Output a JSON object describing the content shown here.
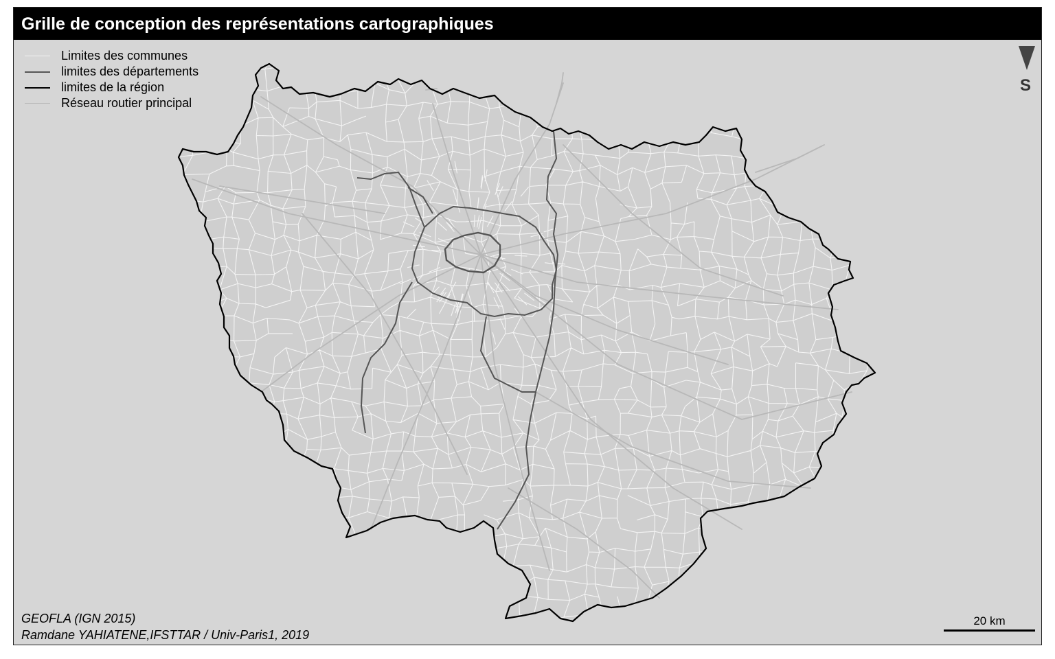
{
  "title": "Grille de conception des représentations cartographiques",
  "legend": {
    "items": [
      {
        "label": "Limites des communes",
        "color": "#f4f4f4",
        "width": 1
      },
      {
        "label": "limites des départements",
        "color": "#555555",
        "width": 2
      },
      {
        "label": "limites de la région",
        "color": "#000000",
        "width": 2
      },
      {
        "label": "Réseau routier principal",
        "color": "#b8b8b8",
        "width": 1
      }
    ]
  },
  "north_arrow": {
    "letter": "S",
    "icon": "south-arrow-icon"
  },
  "source": {
    "line1": "GEOFLA (IGN 2015)",
    "line2": "Ramdane YAHIATENE,IFSTTAR / Univ-Paris1, 2019"
  },
  "scale": {
    "label": "20 km"
  },
  "colors": {
    "background": "#d6d6d6",
    "region_fill": "#cfcfcf",
    "title_bar": "#000000",
    "commune_lines": "#f4f4f4",
    "department_lines": "#555555",
    "region_outline": "#000000",
    "roads": "#b8b8b8"
  }
}
